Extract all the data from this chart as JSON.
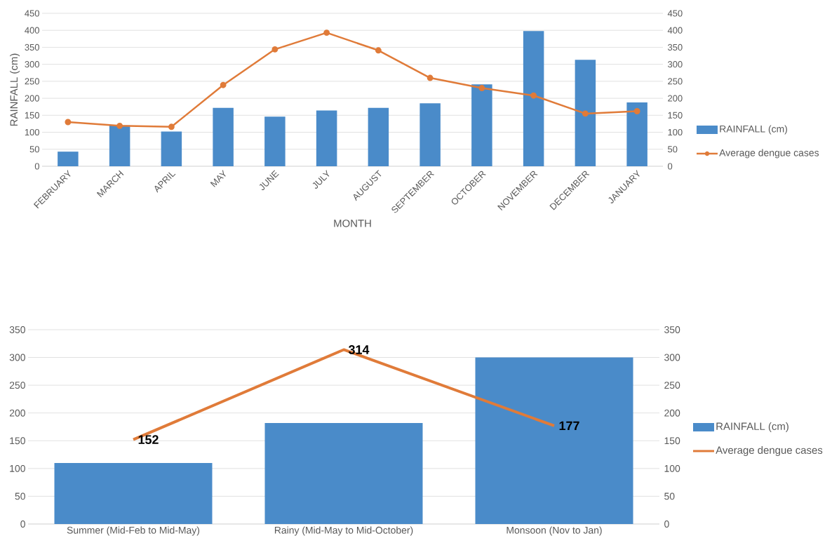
{
  "chart_data": [
    {
      "type": "bar",
      "xlabel": "MONTH",
      "ylabel": "RAINFALL (cm)",
      "categories": [
        "FEBRUARY",
        "MARCH",
        "APRIL",
        "MAY",
        "JUNE",
        "JULY",
        "AUGUST",
        "SEPTEMBER",
        "OCTOBER",
        "NOVEMBER",
        "DECEMBER",
        "JANUARY"
      ],
      "series": [
        {
          "name": "RAINFALL (cm)",
          "color": "#4a8bc9",
          "values": [
            43,
            120,
            102,
            172,
            146,
            164,
            172,
            185,
            241,
            398,
            313,
            188
          ]
        },
        {
          "name": "Average dengue cases",
          "type": "line",
          "axis": "y2",
          "color": "#e07b39",
          "marker": "circle",
          "values": [
            130,
            119,
            116,
            239,
            344,
            393,
            341,
            260,
            230,
            208,
            155,
            162
          ]
        }
      ],
      "ylim": [
        0,
        450
      ],
      "yticks": [
        0,
        50,
        100,
        150,
        200,
        250,
        300,
        350,
        400,
        450
      ],
      "y2lim": [
        0,
        450
      ],
      "y2ticks": [
        0,
        50,
        100,
        150,
        200,
        250,
        300,
        350,
        400,
        450
      ],
      "grid": "y",
      "legend": "right"
    },
    {
      "type": "bar",
      "categories": [
        "Summer (Mid-Feb to Mid-May)",
        "Rainy (Mid-May to Mid-October)",
        "Monsoon (Nov to Jan)"
      ],
      "series": [
        {
          "name": "RAINFALL (cm)",
          "color": "#4a8bc9",
          "values": [
            110,
            182,
            300
          ]
        },
        {
          "name": "Average dengue cases",
          "type": "line",
          "axis": "y2",
          "color": "#e07b39",
          "values": [
            152,
            314,
            177
          ],
          "value_labels": [
            "152",
            "314",
            "177"
          ]
        }
      ],
      "ylim": [
        0,
        350
      ],
      "yticks": [
        0,
        50,
        100,
        150,
        200,
        250,
        300,
        350
      ],
      "y2lim": [
        0,
        350
      ],
      "y2ticks": [
        0,
        50,
        100,
        150,
        200,
        250,
        300,
        350
      ],
      "grid": "y",
      "legend": "right"
    }
  ]
}
